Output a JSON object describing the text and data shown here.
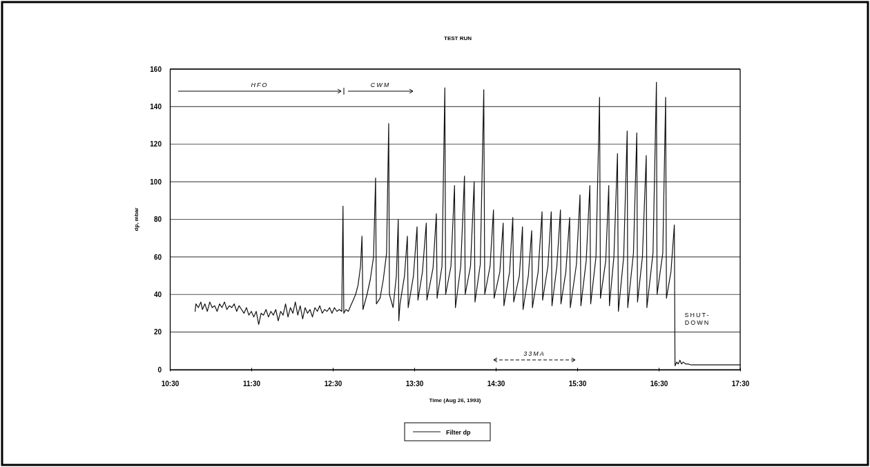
{
  "chart_data": {
    "type": "line",
    "title": "TEST RUN",
    "xlabel": "Time (Aug 26, 1993)",
    "ylabel": "dp, mbar",
    "xlim": [
      10.5,
      17.5
    ],
    "xticks": [
      {
        "value": 10.5,
        "label": "10:30"
      },
      {
        "value": 11.5,
        "label": "11:30"
      },
      {
        "value": 12.5,
        "label": "12:30"
      },
      {
        "value": 13.5,
        "label": "13:30"
      },
      {
        "value": 14.5,
        "label": "14:30"
      },
      {
        "value": 15.5,
        "label": "15:30"
      },
      {
        "value": 16.5,
        "label": "16:30"
      },
      {
        "value": 17.5,
        "label": "17:30"
      }
    ],
    "ylim": [
      0,
      160
    ],
    "yticks": [
      0,
      20,
      40,
      60,
      80,
      100,
      120,
      140,
      160
    ],
    "grid": "y",
    "legend": "bottom",
    "marker": "none",
    "line_style": "solid",
    "annotations": [
      "HFO",
      "CWM",
      "33MA",
      "SHUT-DOWN"
    ],
    "series": [
      {
        "name": "Filter dp",
        "color": "#111111",
        "x": [
          10.81,
          10.82,
          10.85,
          10.88,
          10.9,
          10.93,
          10.96,
          10.99,
          11.02,
          11.05,
          11.08,
          11.11,
          11.14,
          11.17,
          11.2,
          11.23,
          11.26,
          11.29,
          11.32,
          11.35,
          11.38,
          11.41,
          11.44,
          11.47,
          11.5,
          11.53,
          11.56,
          11.59,
          11.62,
          11.65,
          11.68,
          11.71,
          11.74,
          11.77,
          11.8,
          11.83,
          11.86,
          11.89,
          11.92,
          11.95,
          11.98,
          12.01,
          12.04,
          12.07,
          12.1,
          12.13,
          12.16,
          12.19,
          12.22,
          12.25,
          12.28,
          12.31,
          12.34,
          12.37,
          12.4,
          12.43,
          12.46,
          12.49,
          12.52,
          12.55,
          12.58,
          12.61,
          12.625,
          12.635,
          12.66,
          12.69,
          12.72,
          12.75,
          12.78,
          12.81,
          12.84,
          12.858,
          12.87,
          12.92,
          12.96,
          13.0,
          13.025,
          13.035,
          13.08,
          13.12,
          13.16,
          13.186,
          13.195,
          13.24,
          13.28,
          13.303,
          13.31,
          13.325,
          13.38,
          13.415,
          13.425,
          13.49,
          13.534,
          13.545,
          13.6,
          13.647,
          13.655,
          13.73,
          13.771,
          13.78,
          13.84,
          13.875,
          13.885,
          13.95,
          13.994,
          14.005,
          14.07,
          14.116,
          14.125,
          14.19,
          14.235,
          14.245,
          14.31,
          14.353,
          14.365,
          14.43,
          14.472,
          14.48,
          14.55,
          14.591,
          14.6,
          14.67,
          14.709,
          14.72,
          14.79,
          14.828,
          14.835,
          14.9,
          14.941,
          14.95,
          15.02,
          15.068,
          15.075,
          15.14,
          15.181,
          15.19,
          15.25,
          15.294,
          15.3,
          15.36,
          15.407,
          15.415,
          15.49,
          15.534,
          15.545,
          15.61,
          15.655,
          15.665,
          15.73,
          15.774,
          15.785,
          15.85,
          15.887,
          15.895,
          15.95,
          15.994,
          16.005,
          16.07,
          16.113,
          16.12,
          16.19,
          16.231,
          16.24,
          16.3,
          16.347,
          16.355,
          16.43,
          16.472,
          16.48,
          16.55,
          16.585,
          16.595,
          16.65,
          16.692,
          16.7,
          16.72,
          16.74,
          16.76,
          16.78,
          16.8,
          16.83,
          16.86,
          16.9,
          17.5
        ],
        "values": [
          31,
          35,
          33,
          36,
          32,
          35,
          31,
          36,
          33,
          34,
          31,
          35,
          33,
          36,
          32,
          34,
          33,
          35,
          31,
          34,
          32,
          30,
          33,
          29,
          31,
          28,
          31,
          24,
          30,
          29,
          32,
          28,
          31,
          29,
          32,
          26,
          31,
          29,
          35,
          28,
          33,
          30,
          36,
          29,
          34,
          27,
          33,
          30,
          32,
          28,
          33,
          31,
          34,
          30,
          32,
          31,
          33,
          30,
          33,
          31,
          32,
          31,
          87,
          30,
          32,
          31,
          34,
          37,
          40,
          45,
          55,
          71,
          32,
          40,
          48,
          60,
          102,
          35,
          38,
          48,
          62,
          131,
          40,
          33,
          50,
          80,
          26,
          35,
          50,
          71,
          33,
          50,
          76,
          37,
          52,
          78,
          37,
          54,
          83,
          38,
          55,
          150,
          40,
          55,
          98,
          33,
          55,
          103,
          40,
          55,
          100,
          36,
          56,
          149,
          40,
          55,
          85,
          38,
          52,
          78,
          34,
          52,
          81,
          36,
          50,
          76,
          32,
          50,
          74,
          33,
          52,
          84,
          37,
          55,
          84,
          34,
          55,
          85,
          35,
          52,
          81,
          33,
          56,
          93,
          34,
          58,
          98,
          35,
          60,
          145,
          38,
          58,
          98,
          34,
          60,
          115,
          31,
          60,
          127,
          33,
          62,
          126,
          36,
          60,
          114,
          33,
          62,
          153,
          40,
          62,
          145,
          38,
          52,
          77,
          2,
          4,
          3,
          5,
          3,
          4,
          3,
          3,
          2.5,
          2.5
        ]
      }
    ]
  }
}
